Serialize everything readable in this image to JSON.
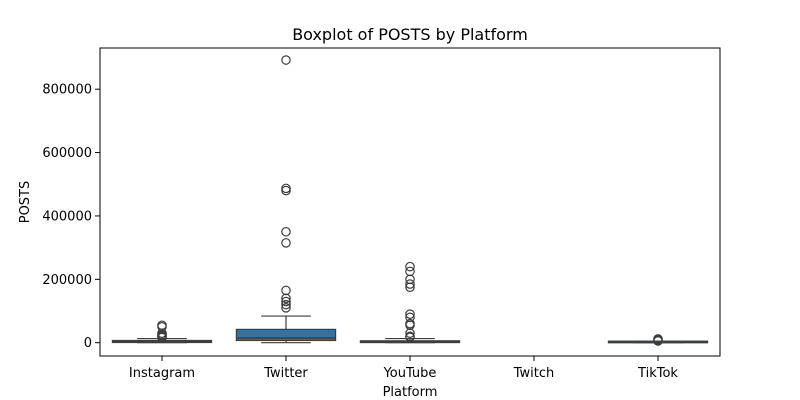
{
  "chart_data": {
    "type": "boxplot",
    "title": "Boxplot of POSTS by Platform",
    "xlabel": "Platform",
    "ylabel": "POSTS",
    "ylim": [
      -42000,
      930000
    ],
    "yticks": [
      0,
      200000,
      400000,
      600000,
      800000
    ],
    "ytick_labels": [
      "0",
      "200000",
      "400000",
      "600000",
      "800000"
    ],
    "grid": false,
    "box_color": "#3274a1",
    "line_color": "#3d3d3d",
    "categories": [
      "Instagram",
      "Twitter",
      "YouTube",
      "Twitch",
      "TikTok"
    ],
    "boxes": [
      {
        "category": "Instagram",
        "whisker_low": 0,
        "q1": 600,
        "median": 2800,
        "q3": 7000,
        "whisker_high": 13000,
        "fliers": [
          16000,
          19000,
          22000,
          25000,
          30000,
          50000,
          55000
        ]
      },
      {
        "category": "Twitter",
        "whisker_low": 0,
        "q1": 7000,
        "median": 15000,
        "q3": 42000,
        "whisker_high": 84000,
        "fliers": [
          110000,
          120000,
          130000,
          140000,
          165000,
          315000,
          350000,
          480000,
          487000,
          892000
        ]
      },
      {
        "category": "YouTube",
        "whisker_low": 0,
        "q1": 400,
        "median": 2000,
        "q3": 6000,
        "whisker_high": 13000,
        "fliers": [
          17000,
          20000,
          30000,
          55000,
          60000,
          80000,
          90000,
          175000,
          185000,
          200000,
          225000,
          240000
        ]
      },
      {
        "category": "Twitch",
        "whisker_low": null,
        "q1": null,
        "median": null,
        "q3": null,
        "whisker_high": null,
        "fliers": []
      },
      {
        "category": "TikTok",
        "whisker_low": 0,
        "q1": 150,
        "median": 700,
        "q3": 1800,
        "whisker_high": 4000,
        "fliers": [
          5500,
          8000,
          10000,
          12000
        ]
      }
    ]
  }
}
